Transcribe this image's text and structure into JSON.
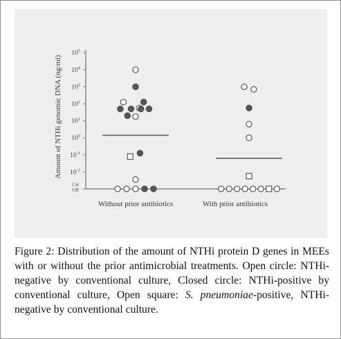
{
  "chart_data": {
    "type": "scatter",
    "ylabel": "Amount of NTHi genomic DNA (ng/ml)",
    "y_ticks": [
      {
        "exp": "5"
      },
      {
        "exp": "4"
      },
      {
        "exp": "3"
      },
      {
        "exp": "2"
      },
      {
        "exp": "1"
      },
      {
        "exp": "0"
      },
      {
        "exp": "-1"
      },
      {
        "exp": "-2"
      }
    ],
    "y_tick_base": "10",
    "cutoff_label_line1": "Cut",
    "cutoff_label_line2": "Off",
    "y_scale": "log",
    "ylim_log10": [
      -3,
      5
    ],
    "cutoff_log10": -3,
    "categories": [
      "Without prior antibiotics",
      "With prior antibiotics"
    ],
    "marker_legend": {
      "open_circle": "NTHi-negative by conventional culture",
      "closed_circle": "NTHi-positive by conventional culture",
      "open_square": "S. pneumoniae-positive, NTHi-negative by conventional culture"
    },
    "series": [
      {
        "category": "Without prior antibiotics",
        "median_log10": 0.15,
        "points": [
          {
            "offset": 0.0,
            "log10": 4.0,
            "marker": "open_circle"
          },
          {
            "offset": 0.0,
            "log10": 3.0,
            "marker": "closed_circle"
          },
          {
            "offset": -1.35,
            "log10": 2.1,
            "marker": "open_circle"
          },
          {
            "offset": 0.9,
            "log10": 2.1,
            "marker": "closed_circle"
          },
          {
            "offset": -1.7,
            "log10": 1.7,
            "marker": "closed_circle"
          },
          {
            "offset": -0.5,
            "log10": 1.7,
            "marker": "closed_circle"
          },
          {
            "offset": 0.4,
            "log10": 1.75,
            "marker": "open_circle"
          },
          {
            "offset": 1.5,
            "log10": 1.7,
            "marker": "closed_circle"
          },
          {
            "offset": -0.9,
            "log10": 1.3,
            "marker": "closed_circle"
          },
          {
            "offset": 0.0,
            "log10": 1.25,
            "marker": "open_circle"
          },
          {
            "offset": 0.6,
            "log10": 1.7,
            "marker": "closed_circle"
          },
          {
            "offset": 0.5,
            "log10": -0.9,
            "marker": "closed_circle"
          },
          {
            "offset": -0.6,
            "log10": -1.1,
            "marker": "open_square"
          },
          {
            "offset": 0.0,
            "log10": -2.45,
            "marker": "open_circle"
          },
          {
            "offset": -2.0,
            "log10": -3,
            "marker": "open_circle"
          },
          {
            "offset": -1.0,
            "log10": -3,
            "marker": "open_circle"
          },
          {
            "offset": 0.0,
            "log10": -3,
            "marker": "open_circle"
          },
          {
            "offset": 1.0,
            "log10": -3,
            "marker": "closed_circle"
          },
          {
            "offset": 2.0,
            "log10": -3,
            "marker": "closed_circle"
          }
        ]
      },
      {
        "category": "With prior antibiotics",
        "median_log10": -1.2,
        "points": [
          {
            "offset": -0.6,
            "log10": 3.0,
            "marker": "open_circle"
          },
          {
            "offset": 0.6,
            "log10": 2.85,
            "marker": "open_circle"
          },
          {
            "offset": 0.0,
            "log10": 1.75,
            "marker": "closed_circle"
          },
          {
            "offset": 0.0,
            "log10": 0.8,
            "marker": "open_circle"
          },
          {
            "offset": 0.0,
            "log10": 0.0,
            "marker": "open_circle"
          },
          {
            "offset": 0.0,
            "log10": -2.25,
            "marker": "open_square"
          },
          {
            "offset": -3.5,
            "log10": -3,
            "marker": "open_circle"
          },
          {
            "offset": -2.5,
            "log10": -3,
            "marker": "open_circle"
          },
          {
            "offset": -1.5,
            "log10": -3,
            "marker": "open_circle"
          },
          {
            "offset": -0.5,
            "log10": -3,
            "marker": "open_circle"
          },
          {
            "offset": 0.5,
            "log10": -3,
            "marker": "open_circle"
          },
          {
            "offset": 1.5,
            "log10": -3,
            "marker": "open_circle"
          },
          {
            "offset": 2.5,
            "log10": -3,
            "marker": "open_square"
          },
          {
            "offset": 3.5,
            "log10": -3,
            "marker": "open_circle"
          }
        ]
      }
    ]
  },
  "caption": {
    "lead": "Figure 2: Distribution of the amount of NTHi protein D genes in MEEs with or without the prior antimicrobial treatments. Open circle: NTHi-negative by conventional culture, Closed circle: NTHi-positive by conventional culture, Open square: ",
    "italic": "S. pneumoniae",
    "tail": "-positive, NTHi-negative by conventional culture."
  }
}
